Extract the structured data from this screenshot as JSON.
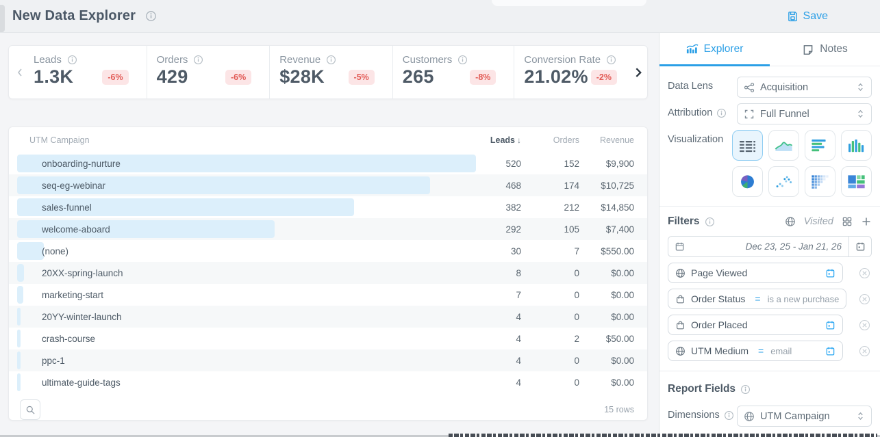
{
  "header": {
    "title": "New Data Explorer",
    "save_label": "Save"
  },
  "metrics": {
    "cards": [
      {
        "label": "Leads",
        "value": "1.3K",
        "delta": "-6%"
      },
      {
        "label": "Orders",
        "value": "429",
        "delta": "-6%"
      },
      {
        "label": "Revenue",
        "value": "$28K",
        "delta": "-5%"
      },
      {
        "label": "Customers",
        "value": "265",
        "delta": "-8%"
      },
      {
        "label": "Conversion Rate",
        "value": "21.02%",
        "delta": "-2%"
      }
    ]
  },
  "table": {
    "columns": {
      "campaign": "UTM Campaign",
      "leads": "Leads",
      "orders": "Orders",
      "revenue": "Revenue"
    },
    "sorted_by": "Leads",
    "rows": [
      {
        "campaign": "onboarding-nurture",
        "leads": 520,
        "orders": 152,
        "revenue": "$9,900"
      },
      {
        "campaign": "seq-eg-webinar",
        "leads": 468,
        "orders": 174,
        "revenue": "$10,725"
      },
      {
        "campaign": "sales-funnel",
        "leads": 382,
        "orders": 212,
        "revenue": "$14,850"
      },
      {
        "campaign": "welcome-aboard",
        "leads": 292,
        "orders": 105,
        "revenue": "$7,400"
      },
      {
        "campaign": "(none)",
        "leads": 30,
        "orders": 7,
        "revenue": "$550.00"
      },
      {
        "campaign": "20XX-spring-launch",
        "leads": 8,
        "orders": 0,
        "revenue": "$0.00"
      },
      {
        "campaign": "marketing-start",
        "leads": 7,
        "orders": 0,
        "revenue": "$0.00"
      },
      {
        "campaign": "20YY-winter-launch",
        "leads": 4,
        "orders": 0,
        "revenue": "$0.00"
      },
      {
        "campaign": "crash-course",
        "leads": 4,
        "orders": 2,
        "revenue": "$50.00"
      },
      {
        "campaign": "ppc-1",
        "leads": 4,
        "orders": 0,
        "revenue": "$0.00"
      },
      {
        "campaign": "ultimate-guide-tags",
        "leads": 4,
        "orders": 0,
        "revenue": "$0.00"
      }
    ],
    "footer": {
      "row_count": "15 rows"
    }
  },
  "sidebar": {
    "tabs": [
      {
        "label": "Explorer",
        "icon": "explorer-chart-icon",
        "active": true
      },
      {
        "label": "Notes",
        "icon": "note-icon",
        "active": false
      }
    ],
    "controls": {
      "data_lens_label": "Data Lens",
      "data_lens_value": "Acquisition",
      "attribution_label": "Attribution",
      "attribution_value": "Full Funnel",
      "visualization_label": "Visualization",
      "visualizations": [
        "table",
        "area-chart",
        "horizontal-bar-chart",
        "vertical-bar-chart",
        "pie-chart",
        "scatter-plot",
        "cohort-grid",
        "treemap"
      ],
      "selected_visualization": "table"
    },
    "filters": {
      "title": "Filters",
      "scope_label": "Visited",
      "date_range": "Dec 23, 25 - Jan 21, 26",
      "chips": [
        {
          "icon": "globe",
          "label": "Page Viewed",
          "has_calendar": true
        },
        {
          "icon": "order",
          "label": "Order Status",
          "operator": "=",
          "value": "is a new purchase",
          "has_calendar": false
        },
        {
          "icon": "order",
          "label": "Order Placed",
          "has_calendar": true
        },
        {
          "icon": "globe",
          "label": "UTM Medium",
          "operator": "=",
          "value": "email",
          "has_calendar": true
        }
      ]
    },
    "report_fields": {
      "title": "Report Fields",
      "dimensions_label": "Dimensions",
      "dimensions_value": "UTM Campaign"
    }
  },
  "colors": {
    "accent_blue": "#2b9fe6",
    "negative_text": "#e25a55",
    "negative_bg": "#fce5e6",
    "data_bar_blue": "#dceffb",
    "viz_green": "#44c07a",
    "viz_purple": "#7a5fc0"
  }
}
